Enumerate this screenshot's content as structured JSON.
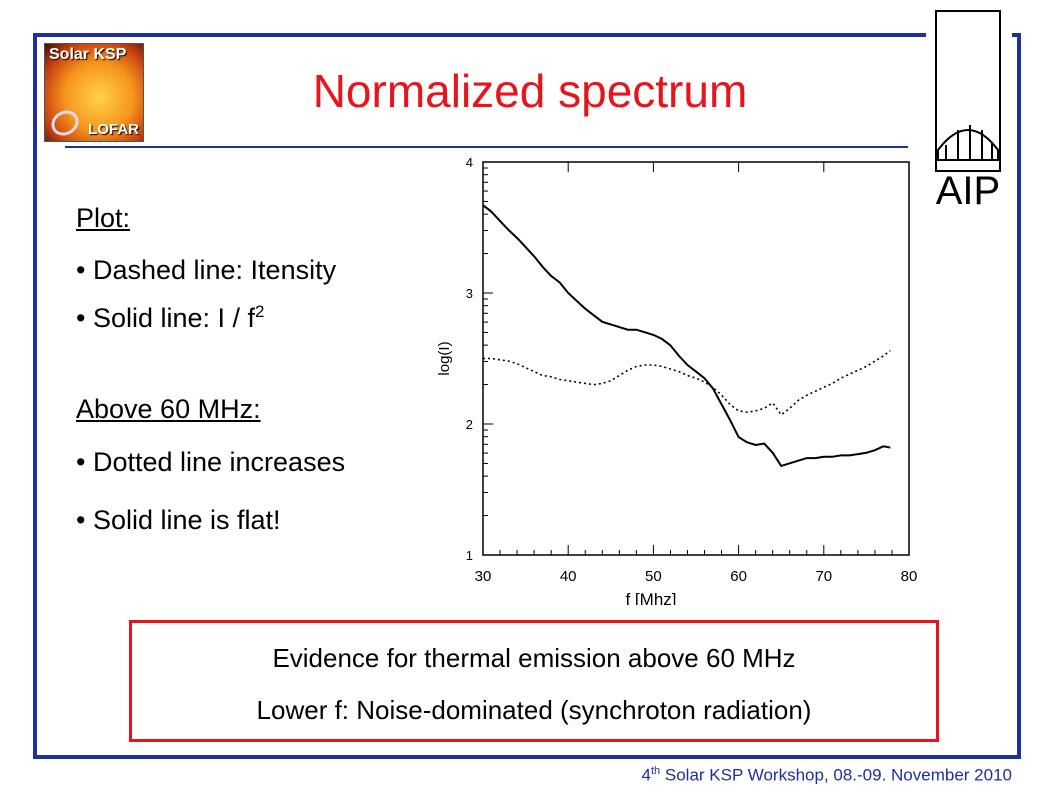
{
  "slide": {
    "title": "Normalized spectrum",
    "logo_lines": [
      "Solar KSP",
      "LOFAR"
    ],
    "aip_label": "AIP"
  },
  "bullets": {
    "plot_heading": "Plot:",
    "plot_items": [
      "• Dashed line: Itensity",
      "• Solid line: I / f"
    ],
    "superscript": "2",
    "above_heading": "Above 60 MHz:",
    "above_items": [
      "• Dotted line increases",
      "• Solid line is flat!"
    ]
  },
  "evidence": {
    "line1": "Evidence for thermal emission above 60 MHz",
    "line2": "Lower f: Noise-dominated (synchroton radiation)"
  },
  "footer": {
    "prefix": "4",
    "sup": "th",
    "text": " Solar KSP Workshop, 08.-09. November 2010"
  },
  "colors": {
    "frame": "#1f2f9c",
    "title": "#e8141b",
    "box": "#e8141b",
    "footer": "#1f2f9c"
  },
  "chart_data": {
    "type": "line",
    "xlabel": "f [Mhz]",
    "ylabel": "log(I)",
    "xlim": [
      30,
      80
    ],
    "ylim": [
      1,
      4
    ],
    "xticks": [
      "30",
      "40",
      "50",
      "60",
      "70",
      "80"
    ],
    "yticks": [
      "1",
      "2",
      "3",
      "4"
    ],
    "grid": false,
    "series": [
      {
        "style": "solid",
        "x": [
          30,
          31,
          32,
          33,
          34,
          35,
          36,
          37,
          38,
          39,
          40,
          41,
          42,
          43,
          44,
          45,
          46,
          47,
          48,
          49,
          50,
          51,
          52,
          53,
          54,
          55,
          56,
          57,
          58,
          59,
          60,
          61,
          62,
          63,
          64,
          65,
          66,
          67,
          68,
          69,
          70,
          71,
          72,
          73,
          74,
          75,
          76,
          77,
          77.8
        ],
        "y": [
          3.67,
          3.62,
          3.55,
          3.48,
          3.42,
          3.35,
          3.28,
          3.2,
          3.13,
          3.08,
          3.0,
          2.94,
          2.88,
          2.83,
          2.78,
          2.76,
          2.74,
          2.72,
          2.72,
          2.7,
          2.68,
          2.65,
          2.6,
          2.52,
          2.45,
          2.4,
          2.35,
          2.27,
          2.15,
          2.03,
          1.9,
          1.86,
          1.84,
          1.85,
          1.78,
          1.68,
          1.7,
          1.72,
          1.74,
          1.74,
          1.75,
          1.75,
          1.76,
          1.76,
          1.77,
          1.78,
          1.8,
          1.83,
          1.82
        ]
      },
      {
        "style": "dotted",
        "x": [
          30,
          31,
          32,
          33,
          34,
          35,
          36,
          37,
          38,
          39,
          40,
          41,
          42,
          43,
          44,
          45,
          46,
          47,
          48,
          49,
          50,
          51,
          52,
          53,
          54,
          55,
          56,
          57,
          58,
          59,
          60,
          61,
          62,
          63,
          64,
          65,
          66,
          67,
          68,
          69,
          70,
          71,
          72,
          73,
          74,
          75,
          76,
          77,
          77.8
        ],
        "y": [
          2.5,
          2.5,
          2.49,
          2.48,
          2.46,
          2.43,
          2.4,
          2.37,
          2.36,
          2.34,
          2.33,
          2.32,
          2.31,
          2.3,
          2.31,
          2.33,
          2.37,
          2.41,
          2.44,
          2.45,
          2.45,
          2.44,
          2.42,
          2.4,
          2.37,
          2.35,
          2.32,
          2.28,
          2.22,
          2.15,
          2.1,
          2.09,
          2.1,
          2.12,
          2.16,
          2.07,
          2.12,
          2.18,
          2.22,
          2.25,
          2.28,
          2.31,
          2.35,
          2.38,
          2.41,
          2.44,
          2.48,
          2.52,
          2.56
        ]
      }
    ]
  }
}
